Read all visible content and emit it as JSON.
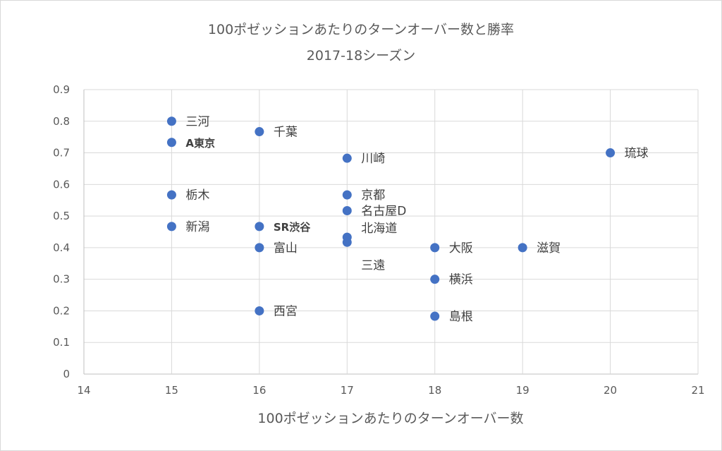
{
  "chart_data": {
    "type": "scatter",
    "title": "100ポゼッションあたりのターンオーバー数と勝率",
    "subtitle": "2017-18シーズン",
    "xlabel": "100ポゼッションあたりのターンオーバー数",
    "ylabel": "",
    "xlim": [
      14,
      21
    ],
    "ylim": [
      0,
      0.9
    ],
    "x_ticks": [
      "14",
      "15",
      "16",
      "17",
      "18",
      "19",
      "20",
      "21"
    ],
    "y_ticks": [
      "0",
      "0.1",
      "0.2",
      "0.3",
      "0.4",
      "0.5",
      "0.6",
      "0.7",
      "0.8",
      "0.9"
    ],
    "grid": "vertical-and-horizontal",
    "point_color": "#4472c4",
    "points": [
      {
        "label": "三河",
        "x": 15,
        "y": 0.8,
        "bold": false
      },
      {
        "label": "A東京",
        "x": 15,
        "y": 0.733,
        "bold": true
      },
      {
        "label": "栃木",
        "x": 15,
        "y": 0.567,
        "bold": false
      },
      {
        "label": "新潟",
        "x": 15,
        "y": 0.467,
        "bold": false
      },
      {
        "label": "千葉",
        "x": 16,
        "y": 0.767,
        "bold": false
      },
      {
        "label": "SR渋谷",
        "x": 16,
        "y": 0.467,
        "bold": true
      },
      {
        "label": "富山",
        "x": 16,
        "y": 0.4,
        "bold": false
      },
      {
        "label": "西宮",
        "x": 16,
        "y": 0.2,
        "bold": false
      },
      {
        "label": "川崎",
        "x": 17,
        "y": 0.683,
        "bold": false
      },
      {
        "label": "京都",
        "x": 17,
        "y": 0.567,
        "bold": false
      },
      {
        "label": "名古屋D",
        "x": 17,
        "y": 0.517,
        "bold": false
      },
      {
        "label": "北海道",
        "x": 17,
        "y": 0.433,
        "bold": false
      },
      {
        "label": "三遠",
        "x": 17,
        "y": 0.417,
        "bold": false
      },
      {
        "label": "大阪",
        "x": 18,
        "y": 0.4,
        "bold": false
      },
      {
        "label": "横浜",
        "x": 18,
        "y": 0.3,
        "bold": false
      },
      {
        "label": "島根",
        "x": 18,
        "y": 0.183,
        "bold": false
      },
      {
        "label": "滋賀",
        "x": 19,
        "y": 0.4,
        "bold": false
      },
      {
        "label": "琉球",
        "x": 20,
        "y": 0.7,
        "bold": false
      }
    ]
  }
}
